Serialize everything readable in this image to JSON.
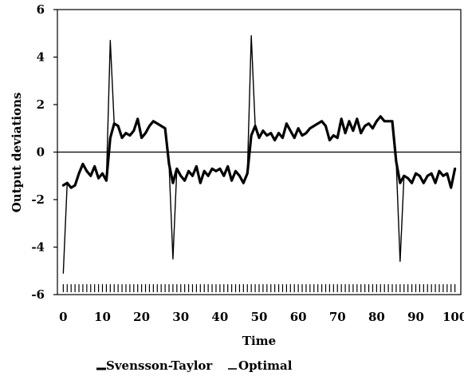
{
  "chart_data": {
    "type": "line",
    "title": "",
    "xlabel": "Time",
    "ylabel": "Output deviations",
    "xlim": [
      -1.5,
      101.5
    ],
    "ylim": [
      -6,
      6
    ],
    "xticks": [
      0,
      10,
      20,
      30,
      40,
      50,
      60,
      70,
      80,
      90,
      100
    ],
    "yticks": [
      -6,
      -4,
      -2,
      0,
      2,
      4,
      6
    ],
    "zero_line": true,
    "minor_ticks_bottom": true,
    "legend": {
      "position": "bottom-center"
    },
    "x": [
      0,
      1,
      2,
      3,
      4,
      5,
      6,
      7,
      8,
      9,
      10,
      11,
      12,
      13,
      14,
      15,
      16,
      17,
      18,
      19,
      20,
      21,
      22,
      23,
      24,
      25,
      26,
      27,
      28,
      29,
      30,
      31,
      32,
      33,
      34,
      35,
      36,
      37,
      38,
      39,
      40,
      41,
      42,
      43,
      44,
      45,
      46,
      47,
      48,
      49,
      50,
      51,
      52,
      53,
      54,
      55,
      56,
      57,
      58,
      59,
      60,
      61,
      62,
      63,
      64,
      65,
      66,
      67,
      68,
      69,
      70,
      71,
      72,
      73,
      74,
      75,
      76,
      77,
      78,
      79,
      80,
      81,
      82,
      83,
      84,
      85,
      86,
      87,
      88,
      89,
      90,
      91,
      92,
      93,
      94,
      95,
      96,
      97,
      98,
      99,
      100
    ],
    "series": [
      {
        "name": "Svensson-Taylor",
        "stroke_width": 3.2,
        "values": [
          -1.4,
          -1.3,
          -1.5,
          -1.4,
          -0.9,
          -0.5,
          -0.8,
          -1.0,
          -0.6,
          -1.1,
          -0.9,
          -1.2,
          0.6,
          1.2,
          1.1,
          0.6,
          0.8,
          0.7,
          0.9,
          1.4,
          0.6,
          0.8,
          1.1,
          1.3,
          1.2,
          1.1,
          1.0,
          -0.5,
          -1.3,
          -0.7,
          -1.0,
          -1.2,
          -0.8,
          -1.0,
          -0.6,
          -1.3,
          -0.8,
          -1.0,
          -0.7,
          -0.8,
          -0.7,
          -1.0,
          -0.6,
          -1.2,
          -0.8,
          -1.0,
          -1.3,
          -0.9,
          0.7,
          1.1,
          0.6,
          0.9,
          0.7,
          0.8,
          0.5,
          0.8,
          0.6,
          1.2,
          0.9,
          0.6,
          1.0,
          0.7,
          0.8,
          1.0,
          1.1,
          1.2,
          1.3,
          1.1,
          0.5,
          0.7,
          0.6,
          1.4,
          0.8,
          1.3,
          0.9,
          1.4,
          0.8,
          1.1,
          1.2,
          1.0,
          1.3,
          1.5,
          1.3,
          1.3,
          1.3,
          -0.4,
          -1.3,
          -1.0,
          -1.1,
          -1.3,
          -0.9,
          -1.0,
          -1.3,
          -1.0,
          -0.9,
          -1.3,
          -0.8,
          -1.0,
          -0.9,
          -1.5,
          -0.7
        ]
      },
      {
        "name": "Optimal",
        "stroke_width": 1.4,
        "values": [
          -5.1,
          -1.3,
          -1.5,
          -1.4,
          -0.9,
          -0.5,
          -0.8,
          -1.0,
          -0.6,
          -1.1,
          -0.9,
          -1.2,
          4.7,
          1.2,
          1.1,
          0.6,
          0.8,
          0.7,
          0.9,
          1.4,
          0.6,
          0.8,
          1.1,
          1.3,
          1.2,
          1.1,
          1.0,
          -0.5,
          -4.5,
          -0.7,
          -1.0,
          -1.2,
          -0.8,
          -1.0,
          -0.6,
          -1.3,
          -0.8,
          -1.0,
          -0.7,
          -0.8,
          -0.7,
          -1.0,
          -0.6,
          -1.2,
          -0.8,
          -1.0,
          -1.3,
          -0.9,
          4.9,
          1.1,
          0.6,
          0.9,
          0.7,
          0.8,
          0.5,
          0.8,
          0.6,
          1.2,
          0.9,
          0.6,
          1.0,
          0.7,
          0.8,
          1.0,
          1.1,
          1.2,
          1.3,
          1.1,
          0.5,
          0.7,
          0.6,
          1.4,
          0.8,
          1.3,
          0.9,
          1.4,
          0.8,
          1.1,
          1.2,
          1.0,
          1.3,
          1.5,
          1.3,
          1.3,
          1.3,
          -0.4,
          -4.6,
          -1.0,
          -1.1,
          -1.3,
          -0.9,
          -1.0,
          -1.3,
          -1.0,
          -0.9,
          -1.3,
          -0.8,
          -1.0,
          -0.9,
          -1.5,
          -0.7
        ]
      }
    ]
  }
}
